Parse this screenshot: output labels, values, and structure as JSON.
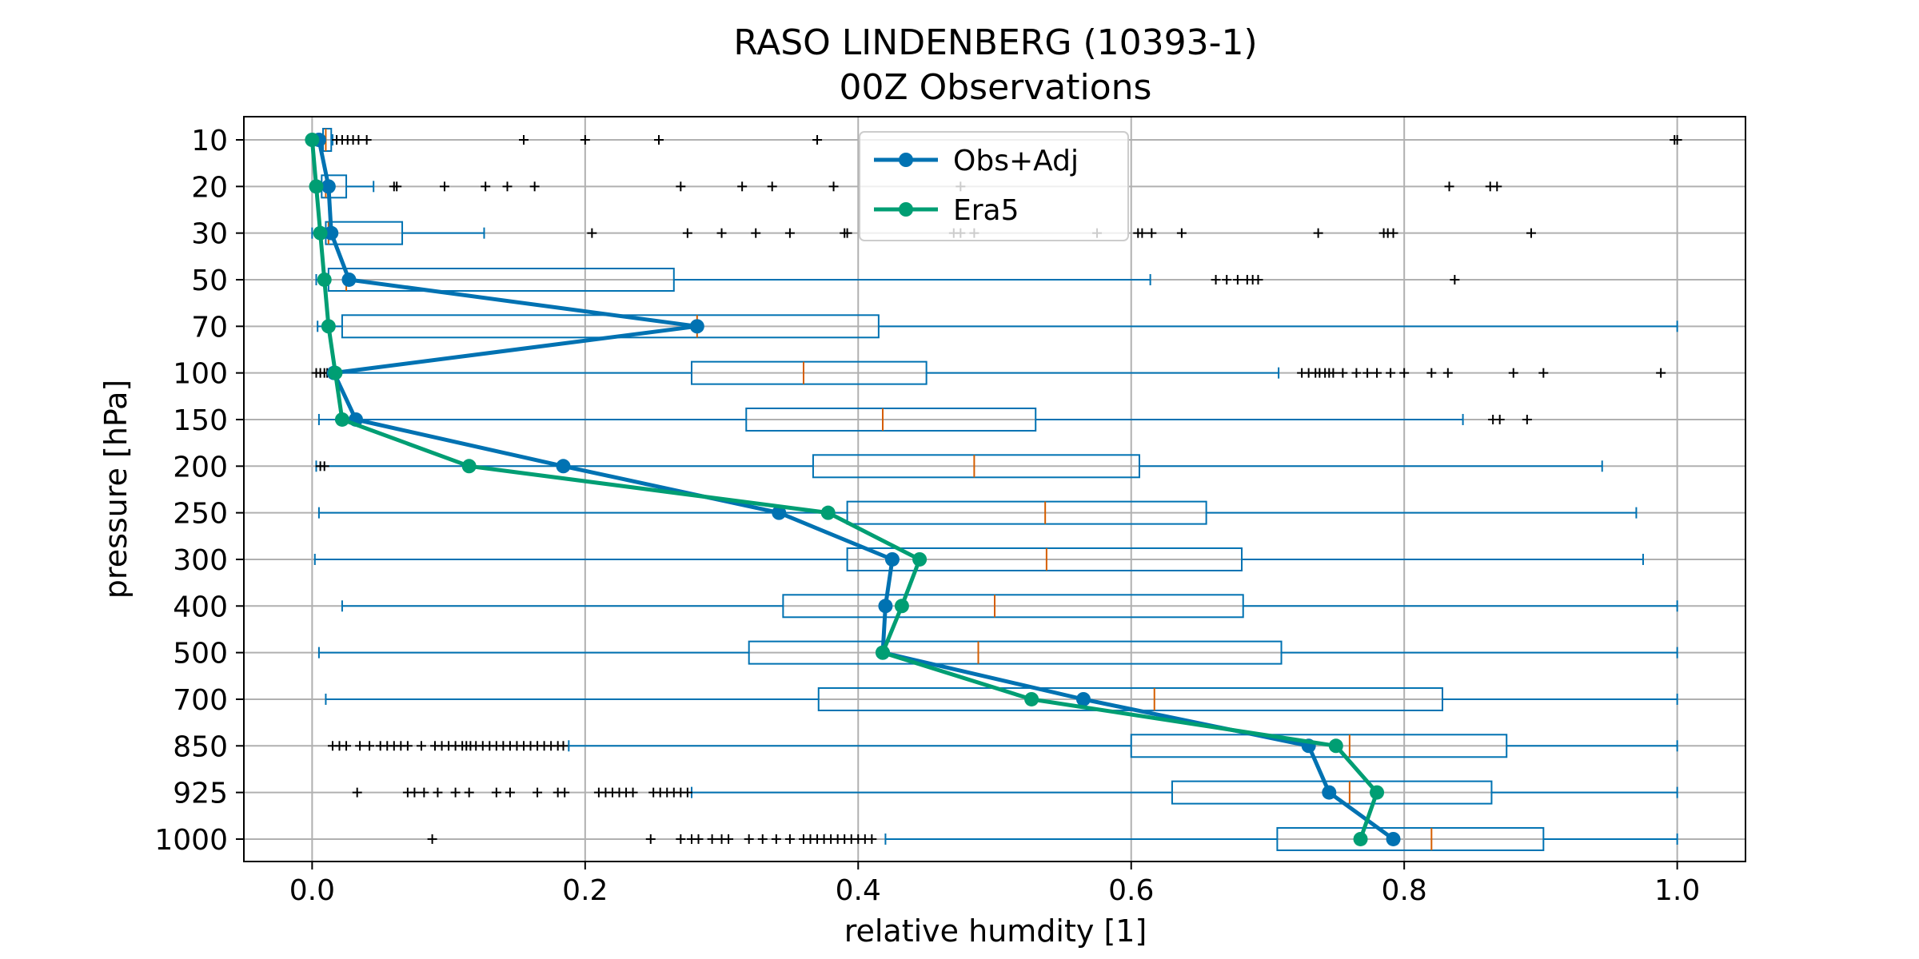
{
  "chart_data": {
    "type": "box",
    "title": "RASO LINDENBERG (10393-1)",
    "subtitle": "00Z Observations",
    "xlabel": "relative humdity [1]",
    "ylabel": "pressure [hPa]",
    "xlim": [
      -0.05,
      1.05
    ],
    "x_ticks": [
      0.0,
      0.2,
      0.4,
      0.6,
      0.8,
      1.0
    ],
    "x_tick_labels": [
      "0.0",
      "0.2",
      "0.4",
      "0.6",
      "0.8",
      "1.0"
    ],
    "categories": [
      "10",
      "20",
      "30",
      "50",
      "70",
      "100",
      "150",
      "200",
      "250",
      "300",
      "400",
      "500",
      "700",
      "850",
      "925",
      "1000"
    ],
    "grid": true,
    "legend_position": "upper-center",
    "colors": {
      "box": "#0072b2",
      "median": "#d55e00",
      "obs": "#0072b2",
      "era5": "#009e73",
      "flier": "#000000"
    },
    "boxes": [
      {
        "level": "10",
        "whislo": 0.0,
        "q1": 0.008,
        "med": 0.01,
        "q3": 0.014,
        "whishi": 0.015,
        "fliers": [
          0.018,
          0.022,
          0.026,
          0.03,
          0.034,
          0.04,
          0.155,
          0.2,
          0.254,
          0.37,
          0.998,
          1.0
        ]
      },
      {
        "level": "20",
        "whislo": 0.0,
        "q1": 0.007,
        "med": 0.01,
        "q3": 0.025,
        "whishi": 0.045,
        "fliers": [
          0.06,
          0.062,
          0.097,
          0.127,
          0.143,
          0.163,
          0.27,
          0.315,
          0.337,
          0.382,
          0.475,
          0.833,
          0.863,
          0.868
        ]
      },
      {
        "level": "30",
        "whislo": 0.0,
        "q1": 0.01,
        "med": 0.012,
        "q3": 0.066,
        "whishi": 0.126,
        "fliers": [
          0.205,
          0.275,
          0.3,
          0.325,
          0.35,
          0.39,
          0.392,
          0.47,
          0.475,
          0.485,
          0.575,
          0.605,
          0.608,
          0.615,
          0.637,
          0.737,
          0.785,
          0.788,
          0.792,
          0.893
        ]
      },
      {
        "level": "50",
        "whislo": 0.003,
        "q1": 0.012,
        "med": 0.025,
        "q3": 0.265,
        "whishi": 0.614,
        "fliers": [
          0.662,
          0.67,
          0.678,
          0.685,
          0.689,
          0.693,
          0.837
        ]
      },
      {
        "level": "70",
        "whislo": 0.004,
        "q1": 0.022,
        "med": 0.282,
        "q3": 0.415,
        "whishi": 1.0,
        "fliers": []
      },
      {
        "level": "100",
        "whislo": 0.013,
        "q1": 0.278,
        "med": 0.36,
        "q3": 0.45,
        "whishi": 0.708,
        "fliers": [
          0.003,
          0.006,
          0.009,
          0.011,
          0.725,
          0.73,
          0.735,
          0.738,
          0.742,
          0.745,
          0.748,
          0.755,
          0.765,
          0.773,
          0.78,
          0.79,
          0.8,
          0.82,
          0.832,
          0.88,
          0.902,
          0.988
        ]
      },
      {
        "level": "150",
        "whislo": 0.005,
        "q1": 0.318,
        "med": 0.418,
        "q3": 0.53,
        "whishi": 0.843,
        "fliers": [
          0.865,
          0.87,
          0.89
        ]
      },
      {
        "level": "200",
        "whislo": 0.003,
        "q1": 0.367,
        "med": 0.485,
        "q3": 0.606,
        "whishi": 0.945,
        "fliers": [
          0.006,
          0.009
        ]
      },
      {
        "level": "250",
        "whislo": 0.005,
        "q1": 0.392,
        "med": 0.537,
        "q3": 0.655,
        "whishi": 0.97,
        "fliers": []
      },
      {
        "level": "300",
        "whislo": 0.002,
        "q1": 0.392,
        "med": 0.538,
        "q3": 0.681,
        "whishi": 0.975,
        "fliers": []
      },
      {
        "level": "400",
        "whislo": 0.022,
        "q1": 0.345,
        "med": 0.5,
        "q3": 0.682,
        "whishi": 1.0,
        "fliers": []
      },
      {
        "level": "500",
        "whislo": 0.005,
        "q1": 0.32,
        "med": 0.488,
        "q3": 0.71,
        "whishi": 1.0,
        "fliers": []
      },
      {
        "level": "700",
        "whislo": 0.01,
        "q1": 0.371,
        "med": 0.617,
        "q3": 0.828,
        "whishi": 1.0,
        "fliers": []
      },
      {
        "level": "850",
        "whislo": 0.188,
        "q1": 0.6,
        "med": 0.76,
        "q3": 0.875,
        "whishi": 1.0,
        "fliers": [
          0.015,
          0.02,
          0.025,
          0.035,
          0.042,
          0.05,
          0.055,
          0.06,
          0.065,
          0.07,
          0.08,
          0.09,
          0.095,
          0.1,
          0.105,
          0.11,
          0.113,
          0.116,
          0.12,
          0.125,
          0.13,
          0.135,
          0.14,
          0.145,
          0.15,
          0.155,
          0.16,
          0.165,
          0.17,
          0.175,
          0.18,
          0.184
        ]
      },
      {
        "level": "925",
        "whislo": 0.278,
        "q1": 0.63,
        "med": 0.76,
        "q3": 0.864,
        "whishi": 1.0,
        "fliers": [
          0.033,
          0.07,
          0.075,
          0.082,
          0.092,
          0.105,
          0.115,
          0.135,
          0.145,
          0.165,
          0.18,
          0.185,
          0.21,
          0.215,
          0.22,
          0.225,
          0.23,
          0.235,
          0.25,
          0.255,
          0.26,
          0.265,
          0.27,
          0.275
        ]
      },
      {
        "level": "1000",
        "whislo": 0.42,
        "q1": 0.707,
        "med": 0.82,
        "q3": 0.902,
        "whishi": 1.0,
        "fliers": [
          0.088,
          0.248,
          0.27,
          0.278,
          0.283,
          0.293,
          0.3,
          0.305,
          0.32,
          0.33,
          0.34,
          0.35,
          0.36,
          0.365,
          0.37,
          0.375,
          0.38,
          0.385,
          0.39,
          0.395,
          0.4,
          0.405,
          0.41
        ]
      }
    ],
    "series": [
      {
        "name": "Obs+Adj",
        "color": "#0072b2",
        "values": [
          0.005,
          0.012,
          0.014,
          0.027,
          0.282,
          0.016,
          0.032,
          0.184,
          0.342,
          0.425,
          0.42,
          0.418,
          0.565,
          0.73,
          0.745,
          0.792
        ]
      },
      {
        "name": "Era5",
        "color": "#009e73",
        "values": [
          0.0,
          0.003,
          0.006,
          0.009,
          0.012,
          0.017,
          0.022,
          0.115,
          0.378,
          0.445,
          0.432,
          0.418,
          0.527,
          0.75,
          0.78,
          0.768
        ]
      }
    ]
  }
}
